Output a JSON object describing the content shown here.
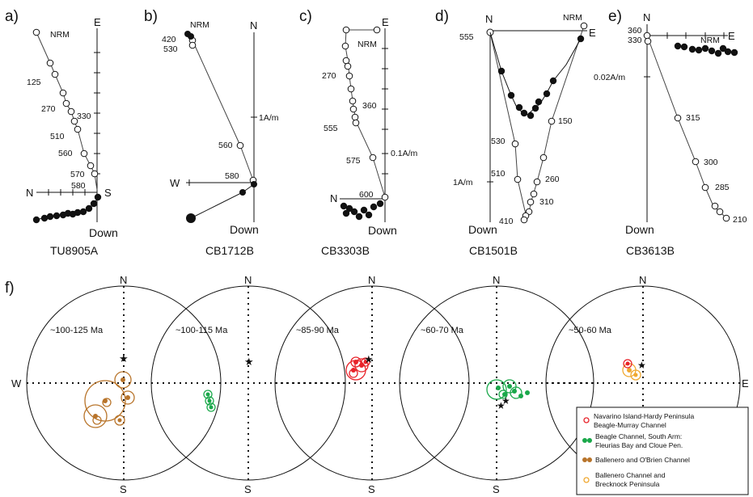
{
  "panel_labels": [
    "a)",
    "b)",
    "c)",
    "d)",
    "e)",
    "f)"
  ],
  "zij_a": {
    "sample": "TU8905A",
    "axes": {
      "n": "N",
      "e": "E",
      "s": "S",
      "down": "Down"
    },
    "steps": [
      "NRM",
      "125",
      "270",
      "330",
      "510",
      "560",
      "570",
      "580"
    ]
  },
  "zij_b": {
    "sample": "CB1712B",
    "axes": {
      "n": "N",
      "w": "W",
      "down": "Down"
    },
    "steps": [
      "NRM",
      "420",
      "530",
      "560",
      "580"
    ],
    "scale": "1A/m"
  },
  "zij_c": {
    "sample": "CB3303B",
    "axes": {
      "n": "N",
      "e": "E",
      "down": "Down"
    },
    "steps": [
      "NRM",
      "270",
      "360",
      "555",
      "575",
      "600"
    ],
    "scale": "0.1A/m"
  },
  "zij_d": {
    "sample": "CB1501B",
    "axes": {
      "n": "N",
      "e": "E",
      "down": "Down"
    },
    "steps": [
      "NRM",
      "555",
      "150",
      "530",
      "510",
      "260",
      "310",
      "410"
    ],
    "scale": "1A/m"
  },
  "zij_e": {
    "sample": "CB3613B",
    "axes": {
      "n": "N",
      "e": "E",
      "down": "Down"
    },
    "steps": [
      "NRM",
      "360",
      "330",
      "315",
      "300",
      "285",
      "210"
    ],
    "scale": "0.02A/m"
  },
  "stereonets": [
    {
      "age": "~100-125 Ma"
    },
    {
      "age": "~100-115 Ma"
    },
    {
      "age": "~85-90 Ma"
    },
    {
      "age": "~60-70 Ma"
    },
    {
      "age": "~50-60 Ma"
    }
  ],
  "directions": {
    "n": "N",
    "s": "S",
    "w": "W",
    "e": "E"
  },
  "legend": [
    {
      "line1": "Navarino Island-Hardy Peninsula",
      "line2": "Beagle-Murray Channel",
      "color": "#e8232a"
    },
    {
      "line1": "Beagle Channel, South Arm:",
      "line2": "Fleurias Bay and Cloue Pen.",
      "color": "#1aa84a"
    },
    {
      "line1": "Ballenero and O'Brien Channel",
      "line2": "",
      "color": "#b8742a"
    },
    {
      "line1": "Ballenero Channel and",
      "line2": "Brecknock Peninsula",
      "color": "#f0a830"
    }
  ]
}
